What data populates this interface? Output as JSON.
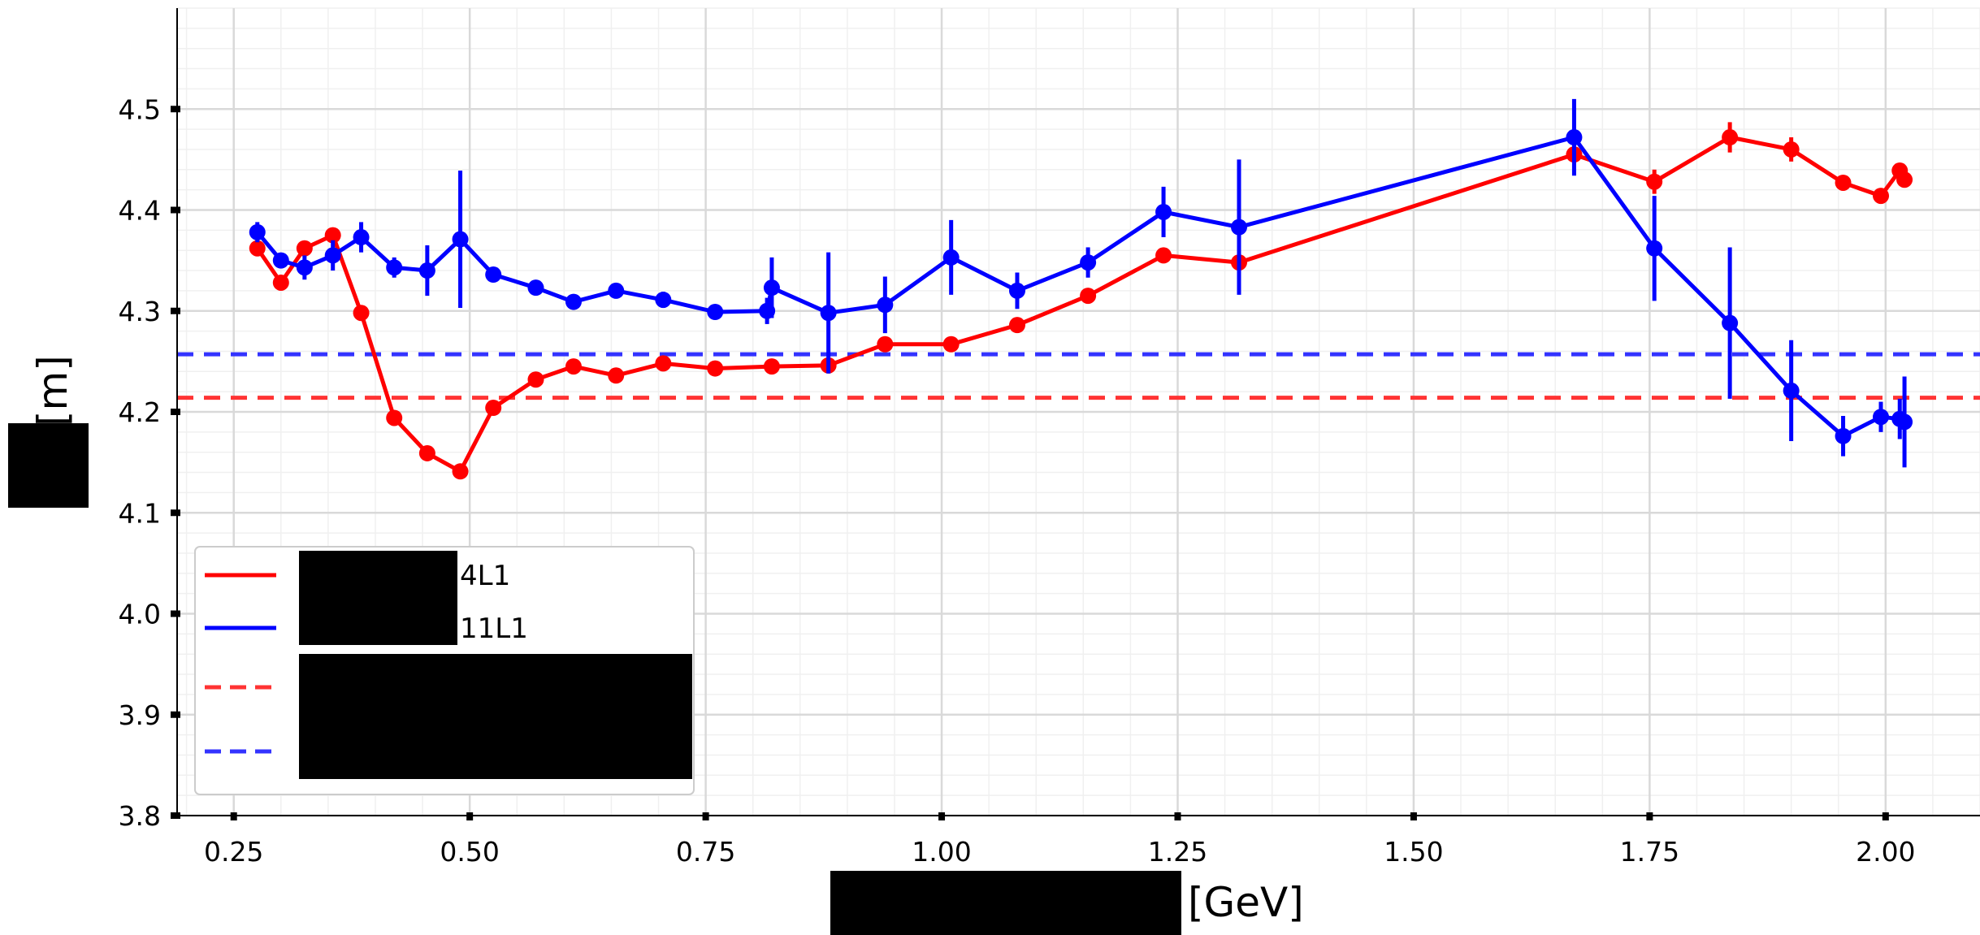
{
  "chart_data": {
    "type": "line",
    "xlabel": "[GeV]",
    "ylabel": "[m]",
    "xlim": [
      0.19,
      2.1
    ],
    "ylim": [
      3.8,
      4.6
    ],
    "xticks": [
      "0.25",
      "0.50",
      "0.75",
      "1.00",
      "1.25",
      "1.50",
      "1.75",
      "2.00"
    ],
    "yticks": [
      "3.8",
      "3.9",
      "4.0",
      "4.1",
      "4.2",
      "4.3",
      "4.4",
      "4.5"
    ],
    "grid": true,
    "minor_grid": true,
    "legend_position": "lower-left",
    "legend": [
      {
        "label": "4L1",
        "color": "#ff0000",
        "style": "solid"
      },
      {
        "label": "11L1",
        "color": "#0000ff",
        "style": "solid"
      },
      {
        "label": "",
        "color": "#ff3333",
        "style": "dashed"
      },
      {
        "label": "",
        "color": "#3333ff",
        "style": "dashed"
      }
    ],
    "series": [
      {
        "name": "4L1",
        "color": "#ff0000",
        "x": [
          0.275,
          0.3,
          0.325,
          0.355,
          0.385,
          0.42,
          0.455,
          0.49,
          0.525,
          0.57,
          0.61,
          0.655,
          0.705,
          0.76,
          0.82,
          0.88,
          0.94,
          1.01,
          1.08,
          1.155,
          1.235,
          1.315,
          1.67,
          1.755,
          1.835,
          1.9,
          1.955,
          1.995,
          2.015,
          2.02
        ],
        "y": [
          4.362,
          4.328,
          4.362,
          4.375,
          4.298,
          4.194,
          4.159,
          4.141,
          4.204,
          4.232,
          4.245,
          4.236,
          4.248,
          4.243,
          4.245,
          4.246,
          4.267,
          4.267,
          4.286,
          4.315,
          4.355,
          4.348,
          4.455,
          4.428,
          4.472,
          4.46,
          4.427,
          4.414,
          4.439,
          4.43
        ],
        "yerr": [
          0,
          0,
          0,
          0,
          0,
          0,
          0,
          0,
          0,
          0,
          0,
          0,
          0,
          0,
          0,
          0,
          0,
          0,
          0,
          0,
          0,
          0,
          0,
          0.012,
          0.015,
          0.012,
          0,
          0,
          0,
          0
        ]
      },
      {
        "name": "11L1",
        "color": "#0000ff",
        "x": [
          0.275,
          0.3,
          0.325,
          0.355,
          0.385,
          0.42,
          0.455,
          0.49,
          0.525,
          0.57,
          0.61,
          0.655,
          0.705,
          0.76,
          0.815,
          0.82,
          0.88,
          0.94,
          1.01,
          1.08,
          1.155,
          1.235,
          1.315,
          1.67,
          1.755,
          1.835,
          1.9,
          1.955,
          1.995,
          2.015,
          2.02
        ],
        "y": [
          4.378,
          4.35,
          4.343,
          4.355,
          4.373,
          4.343,
          4.34,
          4.371,
          4.336,
          4.323,
          4.309,
          4.32,
          4.311,
          4.299,
          4.3,
          4.323,
          4.298,
          4.306,
          4.353,
          4.32,
          4.348,
          4.398,
          4.383,
          4.472,
          4.362,
          4.288,
          4.221,
          4.176,
          4.195,
          4.193,
          4.19
        ],
        "yerr": [
          0.01,
          0,
          0.012,
          0.015,
          0.015,
          0.01,
          0.025,
          0.068,
          0,
          0,
          0,
          0,
          0.008,
          0,
          0.013,
          0.03,
          0.06,
          0.028,
          0.037,
          0.018,
          0.015,
          0.025,
          0.067,
          0.038,
          0.052,
          0.075,
          0.05,
          0.02,
          0.015,
          0.02,
          0.045
        ]
      }
    ],
    "reference_lines": [
      {
        "y": 4.214,
        "color": "#ff3333",
        "style": "dashed"
      },
      {
        "y": 4.257,
        "color": "#3333ff",
        "style": "dashed"
      }
    ]
  }
}
